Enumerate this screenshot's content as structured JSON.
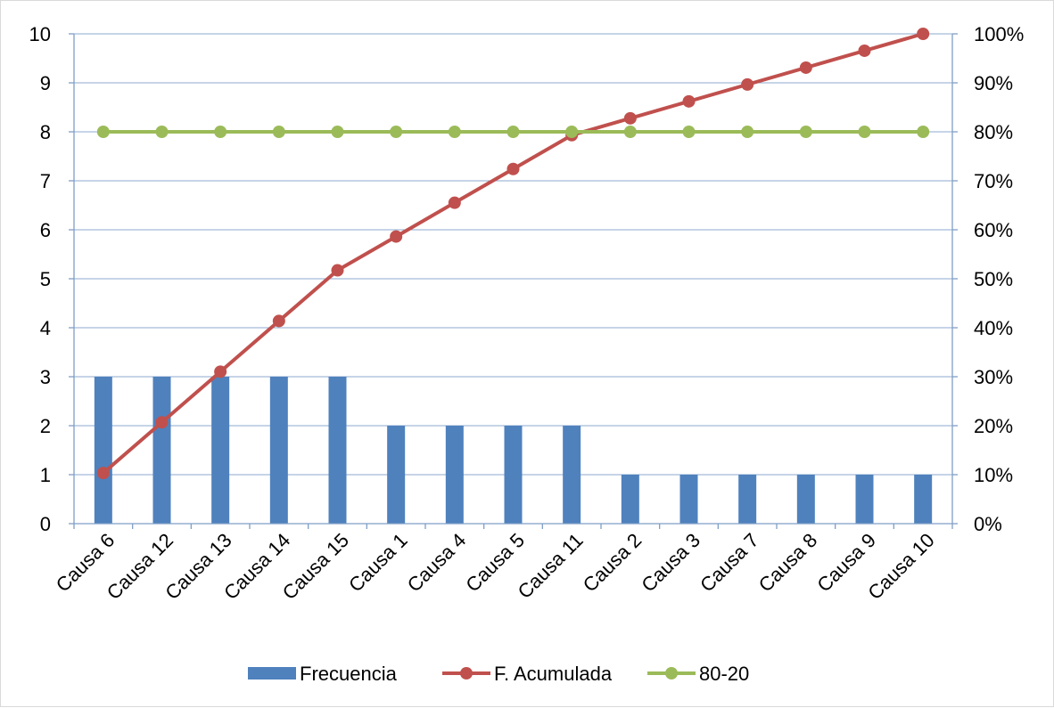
{
  "chart_data": {
    "type": "bar",
    "categories": [
      "Causa 6",
      "Causa 12",
      "Causa 13",
      "Causa 14",
      "Causa 15",
      "Causa 1",
      "Causa 4",
      "Causa 5",
      "Causa 11",
      "Causa 2",
      "Causa 3",
      "Causa 7",
      "Causa 8",
      "Causa 9",
      "Causa 10"
    ],
    "series": [
      {
        "name": "Frecuencia",
        "type": "bar",
        "axis": "left",
        "color": "#4f81bd",
        "values": [
          3,
          3,
          3,
          3,
          3,
          2,
          2,
          2,
          2,
          1,
          1,
          1,
          1,
          1,
          1
        ]
      },
      {
        "name": "F. Acumulada",
        "type": "line",
        "axis": "right",
        "color": "#c0504d",
        "values": [
          0.1034,
          0.2069,
          0.3103,
          0.4138,
          0.5172,
          0.5862,
          0.6552,
          0.7241,
          0.7931,
          0.8276,
          0.8621,
          0.8966,
          0.931,
          0.9655,
          1.0
        ]
      },
      {
        "name": "80-20",
        "type": "line",
        "axis": "right",
        "color": "#9bbb59",
        "values": [
          0.8,
          0.8,
          0.8,
          0.8,
          0.8,
          0.8,
          0.8,
          0.8,
          0.8,
          0.8,
          0.8,
          0.8,
          0.8,
          0.8,
          0.8
        ]
      }
    ],
    "y_left": {
      "min": 0,
      "max": 10,
      "ticks": [
        "0",
        "1",
        "2",
        "3",
        "4",
        "5",
        "6",
        "7",
        "8",
        "9",
        "10"
      ]
    },
    "y_right": {
      "min": 0,
      "max": 1,
      "ticks": [
        "0%",
        "10%",
        "20%",
        "30%",
        "40%",
        "50%",
        "60%",
        "70%",
        "80%",
        "90%",
        "100%"
      ]
    },
    "grid": true,
    "legend_position": "bottom",
    "gridline_color": "#8ea9cf",
    "axis_color": "#7f9fc6"
  }
}
